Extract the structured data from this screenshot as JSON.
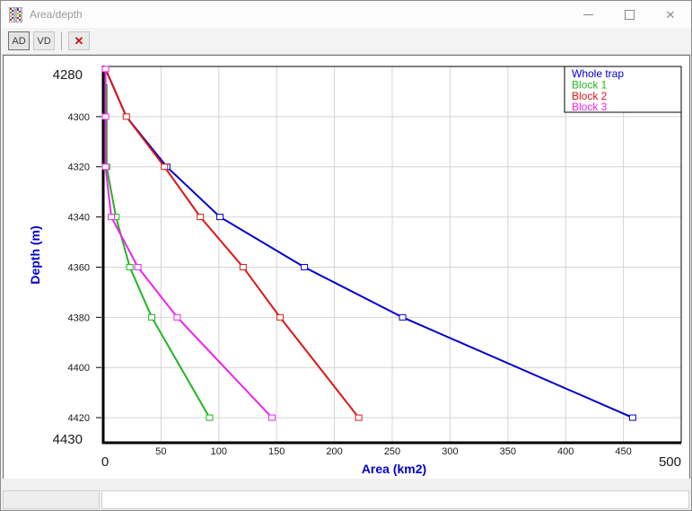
{
  "window": {
    "title": "Area/depth"
  },
  "icons": {
    "titlebar_close": "✕",
    "toolbar_close": "✕"
  },
  "toolbar": {
    "ad_label": "AD",
    "vd_label": "VD"
  },
  "chart_data": {
    "type": "line",
    "title": "",
    "xlabel": "Area (km2)",
    "ylabel": "Depth (m)",
    "xlim": [
      0,
      500
    ],
    "ylim": [
      4280,
      4430
    ],
    "y_inverted": true,
    "grid": true,
    "grid_color": "#d4d4d4",
    "axis_title_color": "#0000cc",
    "tick_label_color": "#1a1a1a",
    "x_ticks": [
      50,
      100,
      150,
      200,
      250,
      300,
      350,
      400,
      450
    ],
    "y_ticks": [
      4300,
      4320,
      4340,
      4360,
      4380,
      4400,
      4420
    ],
    "x_end_labels": [
      "0",
      "500"
    ],
    "y_end_labels": [
      "4280",
      "4430"
    ],
    "legend_position": "top-right",
    "series": [
      {
        "name": "Whole trap",
        "color": "#0000cd",
        "points": [
          [
            2,
            4281,
            0
          ],
          [
            20,
            4300,
            0
          ],
          [
            55,
            4320,
            1
          ],
          [
            101,
            4340,
            1
          ],
          [
            174,
            4360,
            1
          ],
          [
            259,
            4380,
            1
          ],
          [
            458,
            4420,
            1
          ]
        ]
      },
      {
        "name": "Block 1",
        "color": "#22b422",
        "points": [
          [
            3,
            4287,
            0
          ],
          [
            3,
            4300,
            0
          ],
          [
            3,
            4320,
            1
          ],
          [
            11,
            4340,
            1
          ],
          [
            23,
            4360,
            1
          ],
          [
            42,
            4380,
            1
          ],
          [
            92,
            4420,
            1
          ]
        ]
      },
      {
        "name": "Block 2",
        "color": "#dc1616",
        "points": [
          [
            2,
            4281,
            0
          ],
          [
            20,
            4300,
            1
          ],
          [
            53,
            4320,
            1
          ],
          [
            84,
            4340,
            1
          ],
          [
            121,
            4360,
            1
          ],
          [
            153,
            4380,
            1
          ],
          [
            221,
            4420,
            1
          ]
        ]
      },
      {
        "name": "Block 3",
        "color": "#ee22ee",
        "points": [
          [
            2,
            4281,
            1
          ],
          [
            2,
            4300,
            1
          ],
          [
            2,
            4320,
            1
          ],
          [
            7,
            4340,
            1
          ],
          [
            30,
            4360,
            1
          ],
          [
            64,
            4380,
            1
          ],
          [
            146,
            4420,
            1
          ]
        ]
      }
    ]
  },
  "statusbar": {
    "left_text": "",
    "right_text": ""
  }
}
